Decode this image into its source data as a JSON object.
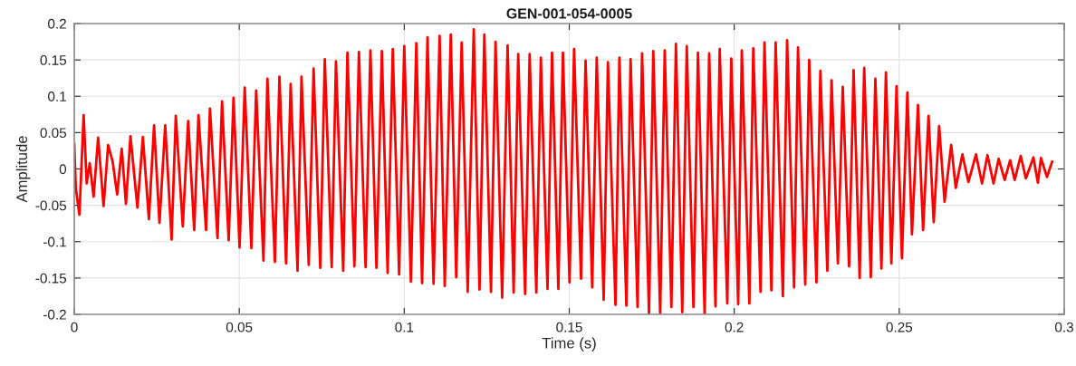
{
  "chart_data": {
    "type": "line",
    "title": "GEN-001-054-0005",
    "xlabel": "Time (s)",
    "ylabel": "Amplitude",
    "x": [
      0.0,
      0.00046,
      0.00156,
      0.00284,
      0.00376,
      0.00467,
      0.00586,
      0.00723,
      0.00888,
      0.01026,
      0.01163,
      0.013,
      0.01438,
      0.01566,
      0.01703,
      0.01914,
      0.02079,
      0.02262,
      0.02418,
      0.02582,
      0.02756,
      0.02949,
      0.03077,
      0.03288,
      0.03452,
      0.03635,
      0.03764,
      0.03993,
      0.04112,
      0.04341,
      0.04478,
      0.04679,
      0.04826,
      0.0501,
      0.05165,
      0.05366,
      0.05513,
      0.05733,
      0.05852,
      0.0608,
      0.06218,
      0.06419,
      0.06557,
      0.06767,
      0.06886,
      0.07106,
      0.07253,
      0.07454,
      0.07592,
      0.07802,
      0.0793,
      0.0815,
      0.08278,
      0.08489,
      0.08626,
      0.08828,
      0.08974,
      0.09157,
      0.09322,
      0.09496,
      0.09652,
      0.09844,
      0.1,
      0.10201,
      0.10366,
      0.1054,
      0.10705,
      0.10888,
      0.11071,
      0.11227,
      0.1141,
      0.11575,
      0.1174,
      0.11923,
      0.12106,
      0.1228,
      0.12427,
      0.12628,
      0.12766,
      0.12967,
      0.13132,
      0.13315,
      0.13453,
      0.13663,
      0.138,
      0.14002,
      0.14139,
      0.14341,
      0.14478,
      0.1467,
      0.14808,
      0.15009,
      0.15147,
      0.15357,
      0.15495,
      0.15696,
      0.15833,
      0.16044,
      0.16172,
      0.16401,
      0.1652,
      0.16731,
      0.16859,
      0.1707,
      0.17207,
      0.17418,
      0.17546,
      0.17756,
      0.17894,
      0.18095,
      0.18233,
      0.18425,
      0.18562,
      0.18764,
      0.18901,
      0.19103,
      0.1924,
      0.19432,
      0.1956,
      0.19789,
      0.19909,
      0.20119,
      0.20229,
      0.20458,
      0.20577,
      0.20797,
      0.20916,
      0.21126,
      0.21255,
      0.21474,
      0.21602,
      0.21813,
      0.21932,
      0.22152,
      0.22271,
      0.22491,
      0.2261,
      0.22821,
      0.22949,
      0.23141,
      0.23288,
      0.2348,
      0.23617,
      0.238,
      0.23938,
      0.24139,
      0.24277,
      0.2446,
      0.24597,
      0.24762,
      0.24918,
      0.25082,
      0.25247,
      0.25385,
      0.25568,
      0.25723,
      0.25888,
      0.26044,
      0.26209,
      0.26374,
      0.26575,
      0.26712,
      0.26914,
      0.27097,
      0.27326,
      0.27509,
      0.27674,
      0.27857,
      0.28013,
      0.28196,
      0.28361,
      0.28498,
      0.28681,
      0.28837,
      0.29066,
      0.29203,
      0.29295,
      0.29478,
      0.29634
    ],
    "series": [
      {
        "color": "#ff0000",
        "values": [
          0.034,
          -0.026,
          -0.063,
          0.074,
          -0.02,
          0.008,
          -0.038,
          0.043,
          -0.051,
          0.033,
          0.01,
          -0.035,
          0.028,
          -0.048,
          0.045,
          -0.053,
          0.044,
          -0.069,
          0.06,
          -0.074,
          0.06,
          -0.097,
          0.073,
          -0.079,
          0.066,
          -0.084,
          0.074,
          -0.084,
          0.083,
          -0.095,
          0.093,
          -0.098,
          0.098,
          -0.108,
          0.112,
          -0.109,
          0.108,
          -0.126,
          0.124,
          -0.128,
          0.127,
          -0.13,
          0.117,
          -0.14,
          0.127,
          -0.132,
          0.138,
          -0.136,
          0.151,
          -0.135,
          0.148,
          -0.14,
          0.16,
          -0.134,
          0.161,
          -0.135,
          0.163,
          -0.136,
          0.162,
          -0.143,
          0.165,
          -0.145,
          0.169,
          -0.155,
          0.173,
          -0.157,
          0.181,
          -0.158,
          0.183,
          -0.161,
          0.185,
          -0.149,
          0.174,
          -0.169,
          0.192,
          -0.166,
          0.185,
          -0.169,
          0.175,
          -0.177,
          0.17,
          -0.17,
          0.158,
          -0.172,
          0.158,
          -0.17,
          0.153,
          -0.165,
          0.16,
          -0.165,
          0.16,
          -0.156,
          0.165,
          -0.151,
          0.149,
          -0.163,
          0.153,
          -0.18,
          0.147,
          -0.187,
          0.153,
          -0.188,
          0.151,
          -0.19,
          0.159,
          -0.2,
          0.162,
          -0.199,
          0.163,
          -0.19,
          0.172,
          -0.197,
          0.169,
          -0.19,
          0.16,
          -0.2,
          0.159,
          -0.189,
          0.165,
          -0.185,
          0.152,
          -0.186,
          0.163,
          -0.185,
          0.166,
          -0.169,
          0.174,
          -0.167,
          0.174,
          -0.175,
          0.177,
          -0.163,
          0.167,
          -0.159,
          0.15,
          -0.156,
          0.135,
          -0.14,
          0.122,
          -0.13,
          0.113,
          -0.134,
          0.136,
          -0.15,
          0.139,
          -0.149,
          0.124,
          -0.137,
          0.133,
          -0.13,
          0.114,
          -0.123,
          0.105,
          -0.09,
          0.088,
          -0.084,
          0.073,
          -0.073,
          0.059,
          -0.045,
          0.033,
          -0.026,
          0.02,
          -0.018,
          0.02,
          -0.02,
          0.019,
          -0.02,
          0.014,
          -0.015,
          0.012,
          -0.015,
          0.018,
          -0.013,
          0.016,
          -0.019,
          0.015,
          -0.011,
          0.01
        ]
      }
    ],
    "xlim": [
      0,
      0.3
    ],
    "ylim": [
      -0.2,
      0.2
    ],
    "xticks": [
      0,
      0.05,
      0.1,
      0.15,
      0.2,
      0.25,
      0.3
    ],
    "yticks": [
      -0.2,
      -0.15,
      -0.1,
      -0.05,
      0,
      0.05,
      0.1,
      0.15,
      0.2
    ],
    "grid": true,
    "line_style": "solid"
  }
}
